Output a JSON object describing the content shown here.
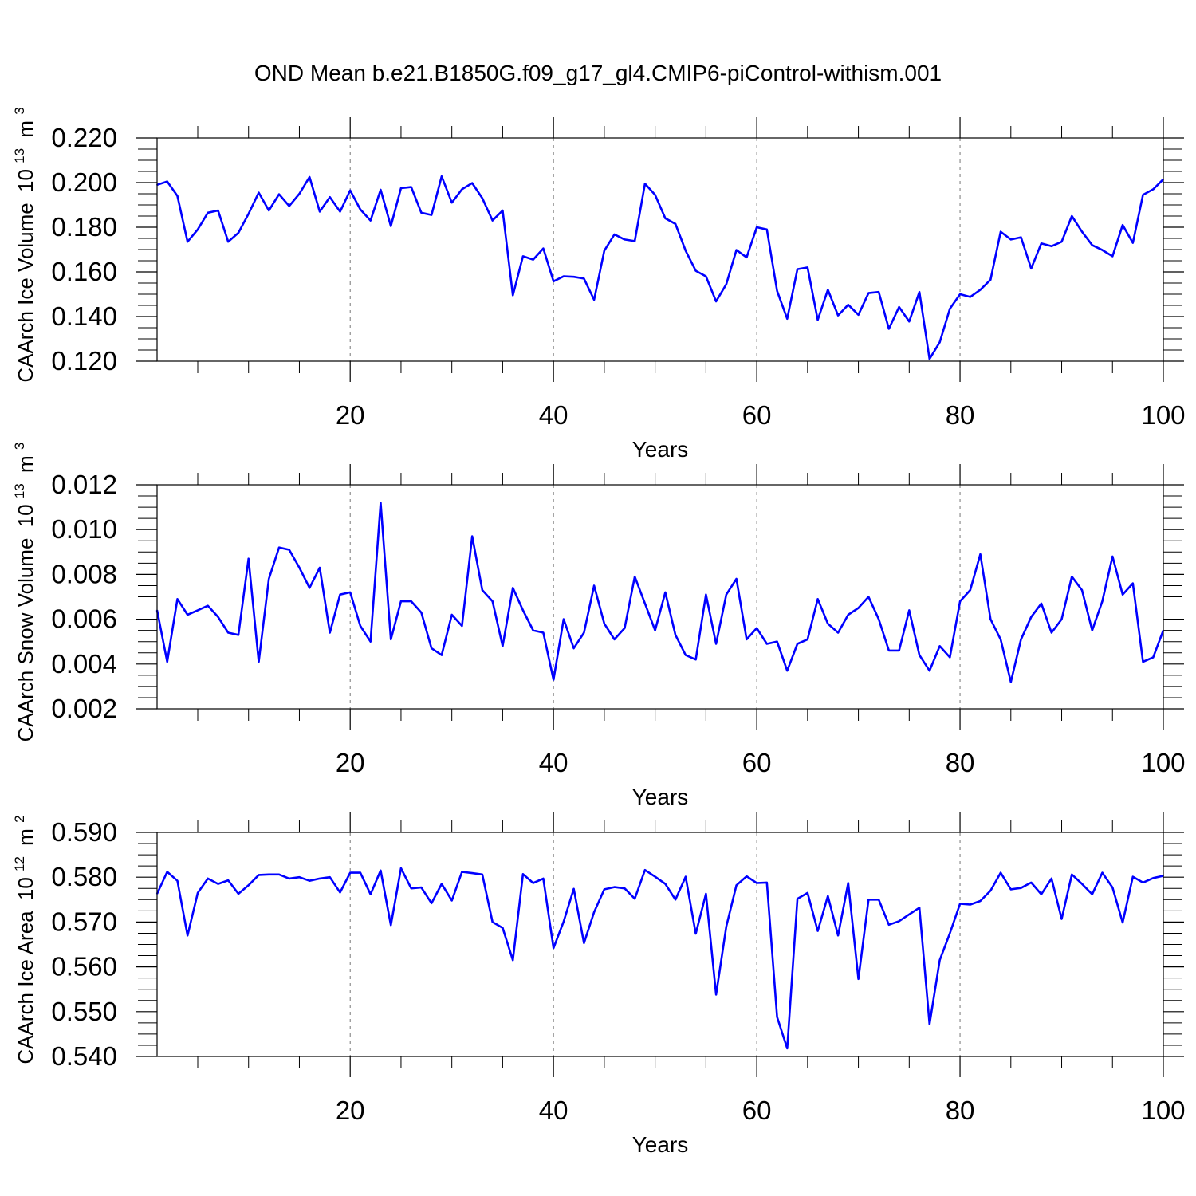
{
  "title": "OND Mean b.e21.B1850G.f09_g17_gl4.CMIP6-piControl-withism.001",
  "line_color": "#0000ff",
  "chart_data": [
    {
      "type": "line",
      "series_name": "CAArch Ice Volume",
      "ylabel": "CAArch Ice Volume",
      "ylabel_unit_base": "10",
      "ylabel_unit_exp": "13",
      "ylabel_unit": "m",
      "ylabel_unit_unit_exp": "3",
      "xlabel": "Years",
      "xlim": [
        1,
        100
      ],
      "ylim": [
        0.12,
        0.22
      ],
      "xticks": [
        20,
        40,
        60,
        80,
        100
      ],
      "xtick_labels": [
        "20",
        "40",
        "60",
        "80",
        "100"
      ],
      "yticks": [
        0.12,
        0.14,
        0.16,
        0.18,
        0.2,
        0.22
      ],
      "ytick_labels": [
        "0.120",
        "0.140",
        "0.160",
        "0.180",
        "0.200",
        "0.220"
      ],
      "grid_x": [
        20,
        40,
        60,
        80
      ],
      "x_start": 1,
      "values": [
        0.199,
        0.2005,
        0.194,
        0.1735,
        0.179,
        0.1865,
        0.1875,
        0.1735,
        0.1775,
        0.186,
        0.1955,
        0.1875,
        0.1948,
        0.1895,
        0.195,
        0.2025,
        0.187,
        0.1935,
        0.187,
        0.1965,
        0.188,
        0.183,
        0.1968,
        0.1805,
        0.1975,
        0.198,
        0.1865,
        0.1855,
        0.2028,
        0.191,
        0.197,
        0.1998,
        0.193,
        0.183,
        0.1875,
        0.1495,
        0.167,
        0.1655,
        0.1705,
        0.1558,
        0.158,
        0.1578,
        0.157,
        0.1475,
        0.1695,
        0.1768,
        0.1745,
        0.1738,
        0.1995,
        0.1945,
        0.184,
        0.1815,
        0.1695,
        0.1605,
        0.158,
        0.1468,
        0.1545,
        0.1698,
        0.1665,
        0.18,
        0.179,
        0.1515,
        0.139,
        0.1612,
        0.162,
        0.1385,
        0.152,
        0.1405,
        0.1453,
        0.1408,
        0.1505,
        0.151,
        0.1345,
        0.1443,
        0.1378,
        0.151,
        0.121,
        0.1285,
        0.1435,
        0.15,
        0.1488,
        0.152,
        0.1565,
        0.178,
        0.1745,
        0.1755,
        0.1615,
        0.1728,
        0.1715,
        0.1735,
        0.185,
        0.178,
        0.172,
        0.1698,
        0.167,
        0.181,
        0.173,
        0.1945,
        0.197,
        0.2015
      ]
    },
    {
      "type": "line",
      "series_name": "CAArch Snow Volume",
      "ylabel": "CAArch Snow Volume",
      "ylabel_unit_base": "10",
      "ylabel_unit_exp": "13",
      "ylabel_unit": "m",
      "ylabel_unit_unit_exp": "3",
      "xlabel": "Years",
      "xlim": [
        1,
        100
      ],
      "ylim": [
        0.002,
        0.012
      ],
      "xticks": [
        20,
        40,
        60,
        80,
        100
      ],
      "xtick_labels": [
        "20",
        "40",
        "60",
        "80",
        "100"
      ],
      "yticks": [
        0.002,
        0.004,
        0.006,
        0.008,
        0.01,
        0.012
      ],
      "ytick_labels": [
        "0.002",
        "0.004",
        "0.006",
        "0.008",
        "0.010",
        "0.012"
      ],
      "grid_x": [
        20,
        40,
        60,
        80
      ],
      "x_start": 1,
      "values": [
        0.0064,
        0.0041,
        0.0069,
        0.0062,
        0.0064,
        0.0066,
        0.0061,
        0.0054,
        0.0053,
        0.0087,
        0.0041,
        0.0078,
        0.0092,
        0.0091,
        0.0083,
        0.0074,
        0.0083,
        0.0054,
        0.0071,
        0.0072,
        0.0057,
        0.005,
        0.0112,
        0.0051,
        0.0068,
        0.0068,
        0.0063,
        0.0047,
        0.0044,
        0.0062,
        0.0057,
        0.0097,
        0.0073,
        0.0068,
        0.0048,
        0.0074,
        0.0064,
        0.0055,
        0.0054,
        0.0033,
        0.006,
        0.0047,
        0.0054,
        0.0075,
        0.0058,
        0.0051,
        0.0056,
        0.0079,
        0.0067,
        0.0055,
        0.0072,
        0.0053,
        0.0044,
        0.0042,
        0.0071,
        0.0049,
        0.0071,
        0.0078,
        0.0051,
        0.0056,
        0.0049,
        0.005,
        0.0037,
        0.0049,
        0.0051,
        0.0069,
        0.0058,
        0.0054,
        0.0062,
        0.0065,
        0.007,
        0.006,
        0.0046,
        0.0046,
        0.0064,
        0.0044,
        0.0037,
        0.0048,
        0.0043,
        0.0068,
        0.0073,
        0.0089,
        0.006,
        0.0051,
        0.0032,
        0.0051,
        0.0061,
        0.0067,
        0.0054,
        0.006,
        0.0079,
        0.0073,
        0.0055,
        0.0068,
        0.0088,
        0.0071,
        0.0076,
        0.0041,
        0.0043,
        0.0055
      ]
    },
    {
      "type": "line",
      "series_name": "CAArch Ice Area",
      "ylabel": "CAArch Ice Area",
      "ylabel_unit_base": "10",
      "ylabel_unit_exp": "12",
      "ylabel_unit": "m",
      "ylabel_unit_unit_exp": "2",
      "xlabel": "Years",
      "xlim": [
        1,
        100
      ],
      "ylim": [
        0.54,
        0.59
      ],
      "xticks": [
        20,
        40,
        60,
        80,
        100
      ],
      "xtick_labels": [
        "20",
        "40",
        "60",
        "80",
        "100"
      ],
      "yticks": [
        0.54,
        0.55,
        0.56,
        0.57,
        0.58,
        0.59
      ],
      "ytick_labels": [
        "0.540",
        "0.550",
        "0.560",
        "0.570",
        "0.580",
        "0.590"
      ],
      "grid_x": [
        20,
        40,
        60,
        80
      ],
      "x_start": 1,
      "values": [
        0.5763,
        0.5812,
        0.5792,
        0.567,
        0.5765,
        0.5797,
        0.5785,
        0.5793,
        0.5763,
        0.5782,
        0.5805,
        0.5806,
        0.5806,
        0.5797,
        0.58,
        0.5792,
        0.5797,
        0.58,
        0.5766,
        0.581,
        0.581,
        0.5762,
        0.5815,
        0.5693,
        0.582,
        0.5775,
        0.5777,
        0.5742,
        0.5785,
        0.5748,
        0.5812,
        0.5809,
        0.5806,
        0.57,
        0.5687,
        0.5615,
        0.5807,
        0.5787,
        0.5797,
        0.5642,
        0.5701,
        0.5774,
        0.5653,
        0.5722,
        0.5773,
        0.5778,
        0.5775,
        0.5752,
        0.5816,
        0.5801,
        0.5785,
        0.575,
        0.5801,
        0.5674,
        0.5763,
        0.5538,
        0.569,
        0.5782,
        0.5802,
        0.5787,
        0.5788,
        0.5488,
        0.5418,
        0.5752,
        0.5765,
        0.568,
        0.5758,
        0.567,
        0.5787,
        0.5573,
        0.575,
        0.575,
        0.5694,
        0.5702,
        0.5717,
        0.5732,
        0.5472,
        0.5615,
        0.5675,
        0.5741,
        0.5739,
        0.5747,
        0.577,
        0.581,
        0.5773,
        0.5776,
        0.5788,
        0.5762,
        0.5797,
        0.5707,
        0.5806,
        0.5785,
        0.5762,
        0.581,
        0.5777,
        0.5699,
        0.5801,
        0.5788,
        0.5798,
        0.5803
      ]
    }
  ]
}
